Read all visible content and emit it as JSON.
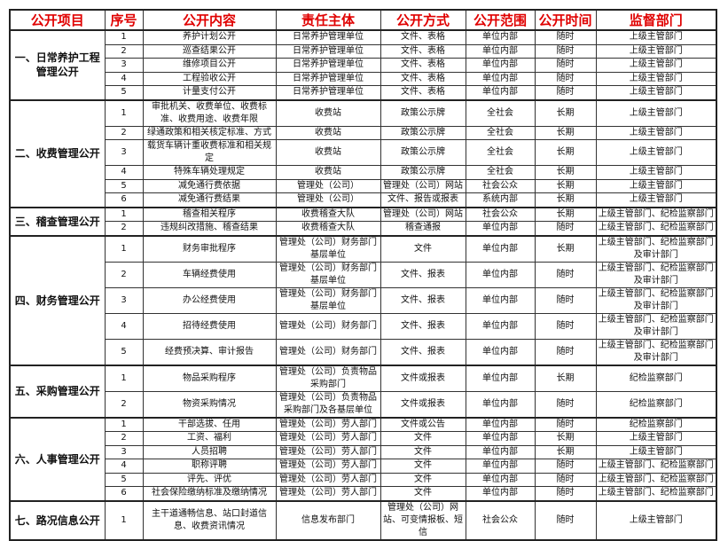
{
  "headers": [
    "公开项目",
    "序号",
    "公开内容",
    "责任主体",
    "公开方式",
    "公开范围",
    "公开时间",
    "监督部门"
  ],
  "accent_color": "#e00000",
  "groups": [
    {
      "title": "一、日常养护工程管理公开",
      "rows": [
        [
          "1",
          "养护计划公开",
          "日常养护管理单位",
          "文件、表格",
          "单位内部",
          "随时",
          "上级主管部门"
        ],
        [
          "2",
          "巡查结果公开",
          "日常养护管理单位",
          "文件、表格",
          "单位内部",
          "随时",
          "上级主管部门"
        ],
        [
          "3",
          "维修项目公开",
          "日常养护管理单位",
          "文件、表格",
          "单位内部",
          "随时",
          "上级主管部门"
        ],
        [
          "4",
          "工程验收公开",
          "日常养护管理单位",
          "文件、表格",
          "单位内部",
          "随时",
          "上级主管部门"
        ],
        [
          "5",
          "计量支付公开",
          "日常养护管理单位",
          "文件、表格",
          "单位内部",
          "随时",
          "上级主管部门"
        ]
      ]
    },
    {
      "title": "二、收费管理公开",
      "rows": [
        [
          "1",
          "审批机关、收费单位、收费标准、收费用途、收费年限",
          "收费站",
          "政策公示牌",
          "全社会",
          "长期",
          "上级主管部门"
        ],
        [
          "2",
          "绿通政策和相关核定标准、方式",
          "收费站",
          "政策公示牌",
          "全社会",
          "长期",
          "上级主管部门"
        ],
        [
          "3",
          "载货车辆计重收费标准和相关规定",
          "收费站",
          "政策公示牌",
          "全社会",
          "长期",
          "上级主管部门"
        ],
        [
          "4",
          "特殊车辆处理规定",
          "收费站",
          "政策公示牌",
          "全社会",
          "长期",
          "上级主管部门"
        ],
        [
          "5",
          "减免通行费依据",
          "管理处（公司）",
          "管理处（公司）网站",
          "社会公众",
          "长期",
          "上级主管部门"
        ],
        [
          "6",
          "减免通行费结果",
          "管理处（公司）",
          "文件、报告或报表",
          "系统内部",
          "长期",
          "上级主管部门"
        ]
      ]
    },
    {
      "title": "三、稽查管理公开",
      "rows": [
        [
          "1",
          "稽查相关程序",
          "收费稽查大队",
          "管理处（公司）网站",
          "社会公众",
          "长期",
          "上级主管部门、纪检监察部门"
        ],
        [
          "2",
          "违规纠改措施、稽查结果",
          "收费稽查大队",
          "稽查通报",
          "单位内部",
          "随时",
          "上级主管部门、纪检监察部门"
        ]
      ]
    },
    {
      "title": "四、财务管理公开",
      "rows": [
        [
          "1",
          "财务审批程序",
          "管理处（公司）财务部门基层单位",
          "文件",
          "单位内部",
          "长期",
          "上级主管部门、纪检监察部门及审计部门"
        ],
        [
          "2",
          "车辆经费使用",
          "管理处（公司）财务部门基层单位",
          "文件、报表",
          "单位内部",
          "随时",
          "上级主管部门、纪检监察部门及审计部门"
        ],
        [
          "3",
          "办公经费使用",
          "管理处（公司）财务部门基层单位",
          "文件、报表",
          "单位内部",
          "随时",
          "上级主管部门、纪检监察部门及审计部门"
        ],
        [
          "4",
          "招待经费使用",
          "管理处（公司）财务部门",
          "文件、报表",
          "单位内部",
          "随时",
          "上级主管部门、纪检监察部门及审计部门"
        ],
        [
          "5",
          "经费预决算、审计报告",
          "管理处（公司）财务部门",
          "文件、报表",
          "单位内部",
          "随时",
          "上级主管部门、纪检监察部门及审计部门"
        ]
      ]
    },
    {
      "title": "五、采购管理公开",
      "rows": [
        [
          "1",
          "物品采购程序",
          "管理处（公司）负责物品采购部门",
          "文件或报表",
          "单位内部",
          "长期",
          "纪检监察部门"
        ],
        [
          "2",
          "物资采购情况",
          "管理处（公司）负责物品采购部门及各基层单位",
          "文件或报表",
          "单位内部",
          "随时",
          "纪检监察部门"
        ]
      ]
    },
    {
      "title": "六、人事管理公开",
      "rows": [
        [
          "1",
          "干部选拔、任用",
          "管理处（公司）劳人部门",
          "文件或公告",
          "单位内部",
          "随时",
          "纪检监察部门"
        ],
        [
          "2",
          "工资、福利",
          "管理处（公司）劳人部门",
          "文件",
          "单位内部",
          "长期",
          "上级主管部门"
        ],
        [
          "3",
          "人员招聘",
          "管理处（公司）劳人部门",
          "文件",
          "单位内部",
          "长期",
          "上级主管部门"
        ],
        [
          "4",
          "职称评聘",
          "管理处（公司）劳人部门",
          "文件",
          "单位内部",
          "随时",
          "上级主管部门、纪检监察部门"
        ],
        [
          "5",
          "评先、评优",
          "管理处（公司）劳人部门",
          "文件",
          "单位内部",
          "随时",
          "上级主管部门、纪检监察部门"
        ],
        [
          "6",
          "社会保险缴纳标准及缴纳情况",
          "管理处（公司）劳人部门",
          "文件",
          "单位内部",
          "随时",
          "上级主管部门、纪检监察部门"
        ]
      ]
    },
    {
      "title": "七、路况信息公开",
      "rows": [
        [
          "1",
          "主干道通畅信息、站口封道信息、收费资讯情况",
          "信息发布部门",
          "管理处（公司）网站、可变情报板、短信",
          "社会公众",
          "随时",
          "上级主管部门"
        ]
      ]
    }
  ]
}
